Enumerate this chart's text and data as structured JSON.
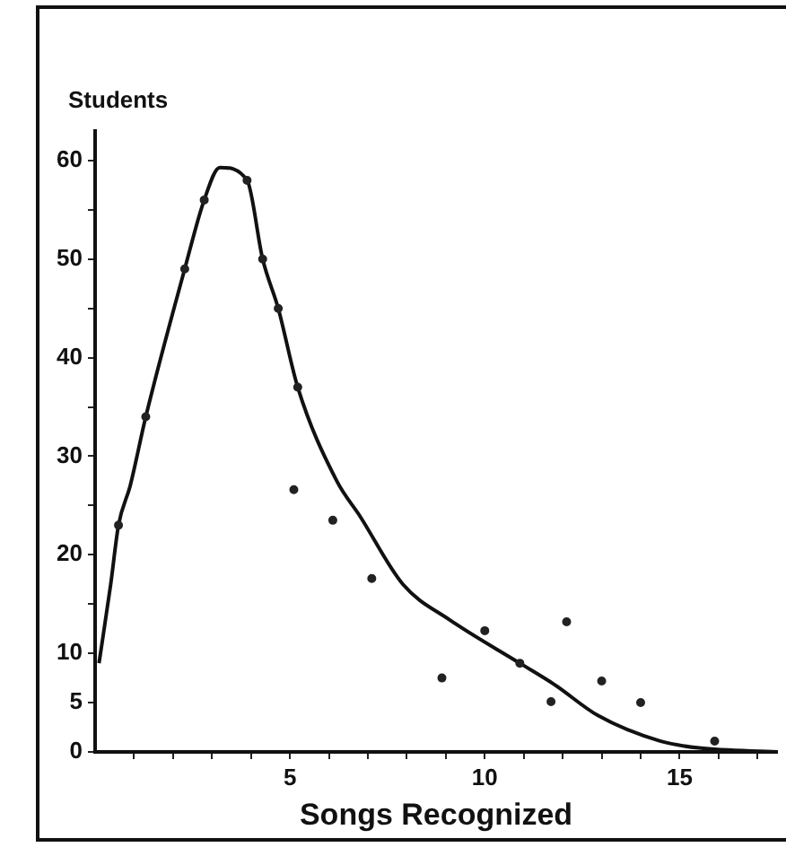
{
  "chart_data": {
    "type": "scatter",
    "xlabel": "Songs Recognized",
    "ylabel": "Students",
    "xlim": [
      0,
      17.5
    ],
    "ylim": [
      0,
      63
    ],
    "xticks": [
      {
        "value": 1,
        "label": null
      },
      {
        "value": 2,
        "label": null
      },
      {
        "value": 3,
        "label": null
      },
      {
        "value": 4,
        "label": null
      },
      5,
      {
        "value": 6,
        "label": null
      },
      {
        "value": 7,
        "label": null
      },
      {
        "value": 8,
        "label": null
      },
      {
        "value": 9,
        "label": null
      },
      10,
      {
        "value": 11,
        "label": null
      },
      {
        "value": 12,
        "label": null
      },
      {
        "value": 13,
        "label": null
      },
      {
        "value": 14,
        "label": null
      },
      15,
      {
        "value": 16,
        "label": null
      },
      {
        "value": 17,
        "label": null
      }
    ],
    "yticks": [
      0,
      5,
      10,
      {
        "value": 15,
        "label": null
      },
      20,
      {
        "value": 25,
        "label": null
      },
      30,
      {
        "value": 35,
        "label": null
      },
      40,
      {
        "value": 45,
        "label": null
      },
      50,
      {
        "value": 55,
        "label": null
      },
      60
    ],
    "grid": false,
    "legend": false,
    "series": [
      {
        "marker": "circle",
        "color": "#222222",
        "x": [
          0.6,
          1.3,
          2.3,
          2.8,
          3.9,
          4.3,
          4.7,
          5.2,
          5.1,
          6.1,
          7.1,
          8.9,
          10.0,
          10.9,
          11.7,
          12.1,
          13.0,
          14.0,
          15.9
        ],
        "values": [
          23,
          34,
          49,
          56,
          58,
          50,
          45,
          37,
          26.6,
          23.5,
          17.6,
          7.5,
          12.3,
          9,
          5.1,
          13.2,
          7.2,
          5,
          1.1
        ]
      },
      {
        "type": "line",
        "marker": "none",
        "line_style": "solid",
        "color": "#111111",
        "x": [
          0.1,
          0.4,
          0.6,
          0.9,
          1.3,
          2.3,
          2.8,
          3.2,
          3.9,
          4.3,
          4.7,
          5.2,
          6.2,
          6.8,
          7.9,
          9.1,
          10.9,
          11.8,
          12.9,
          14.5,
          15.5,
          17.5
        ],
        "values": [
          9,
          17,
          23,
          27,
          34,
          49,
          56,
          59.3,
          58,
          50,
          45,
          37,
          27.5,
          23.9,
          17,
          13.4,
          9,
          6.8,
          3.7,
          1.1,
          0.4,
          0
        ]
      }
    ]
  }
}
